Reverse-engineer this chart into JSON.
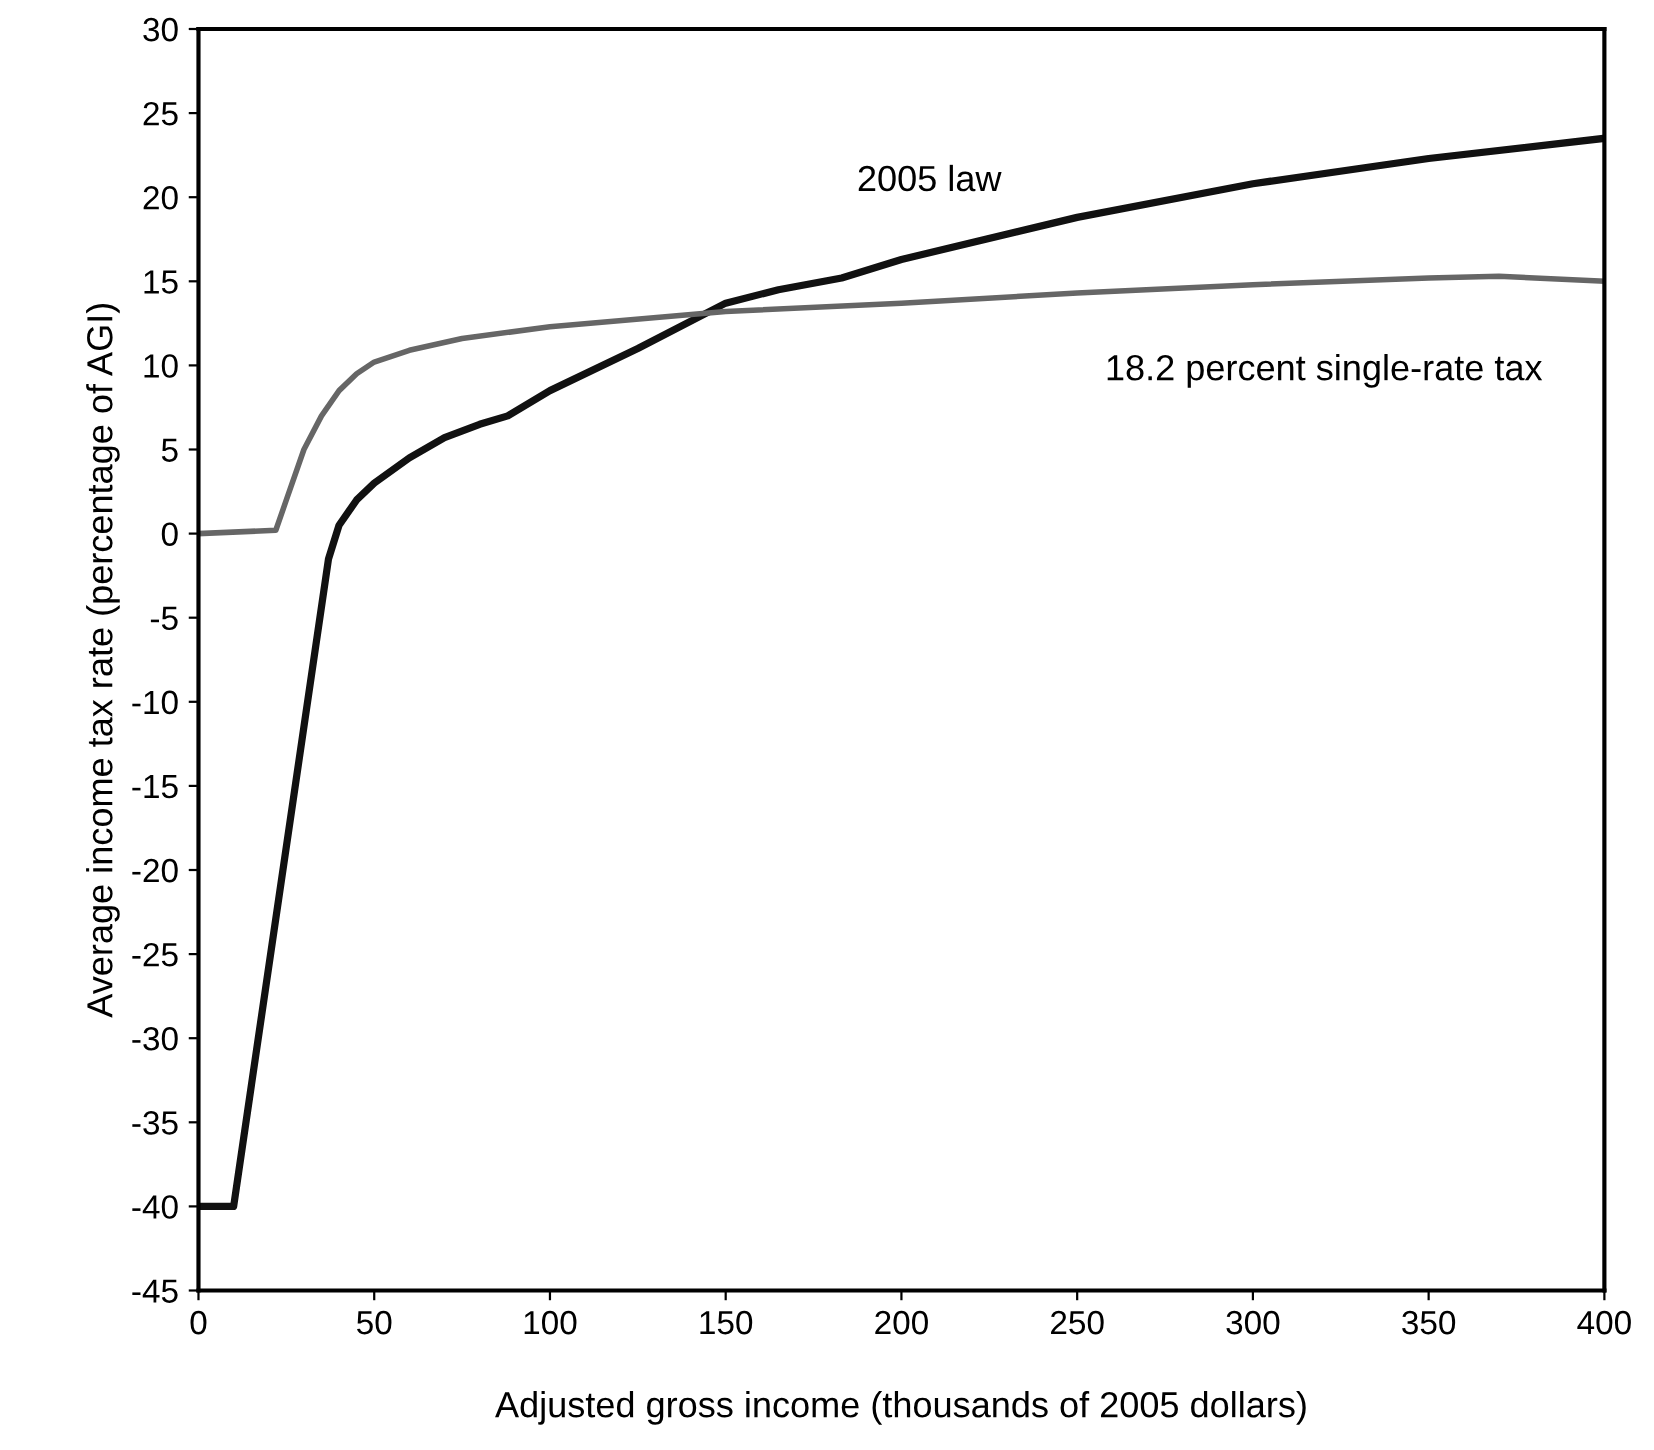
{
  "chart_data": {
    "type": "line",
    "xlabel": "Adjusted gross income (thousands of 2005 dollars)",
    "ylabel": "Average income tax rate (percentage of AGI)",
    "xlim": [
      0,
      400
    ],
    "xticks": [
      0,
      50,
      100,
      150,
      200,
      250,
      300,
      350,
      400
    ],
    "ylim": [
      -45,
      30
    ],
    "yticks": [
      -45,
      -40,
      -35,
      -30,
      -25,
      -20,
      -15,
      -10,
      -5,
      0,
      5,
      10,
      15,
      20,
      25,
      30
    ],
    "grid": false,
    "legend": false,
    "marker": "none",
    "line_style": "solid",
    "series": [
      {
        "name": "2005 law",
        "color": "#111111",
        "x": [
          0,
          10,
          37,
          40,
          45,
          50,
          60,
          70,
          80,
          88,
          100,
          125,
          150,
          165,
          183,
          200,
          250,
          300,
          350,
          400
        ],
        "values": [
          -40,
          -40,
          -1.5,
          0.5,
          2,
          3,
          4.5,
          5.7,
          6.5,
          7,
          8.5,
          11,
          13.7,
          14.5,
          15.2,
          16.3,
          18.8,
          20.8,
          22.3,
          23.5
        ]
      },
      {
        "name": "18.2 percent single-rate tax",
        "color": "#666666",
        "x": [
          0,
          22,
          25,
          30,
          35,
          40,
          45,
          50,
          60,
          75,
          100,
          150,
          200,
          250,
          300,
          350,
          370,
          400
        ],
        "values": [
          0,
          0.2,
          2,
          5,
          7,
          8.5,
          9.5,
          10.2,
          10.9,
          11.6,
          12.3,
          13.2,
          13.7,
          14.3,
          14.8,
          15.2,
          15.3,
          15
        ]
      }
    ]
  }
}
